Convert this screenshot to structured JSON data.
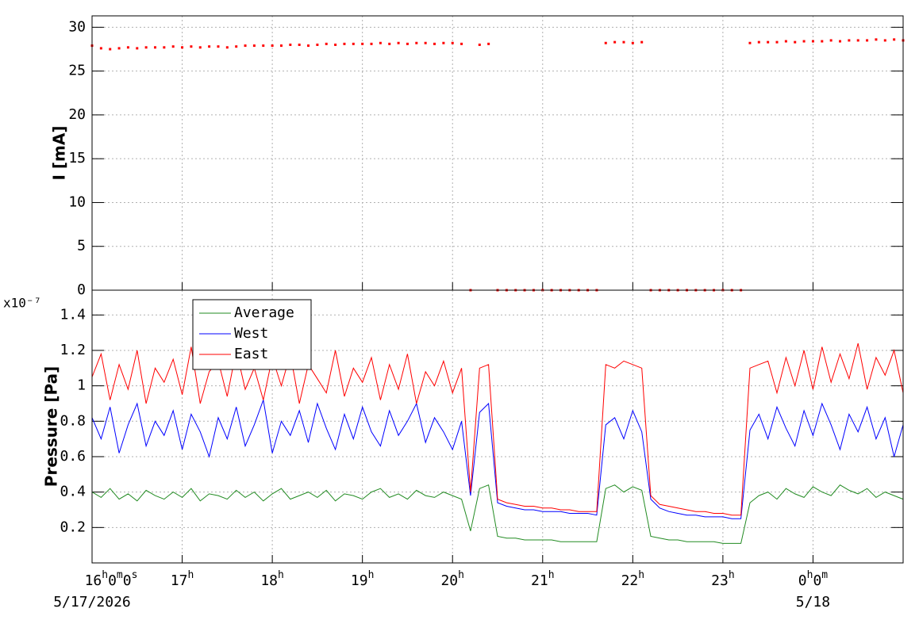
{
  "chart_data": [
    {
      "type": "scatter",
      "y_label": "I [mA]",
      "xlim": [
        16,
        25
      ],
      "ylim": [
        0,
        31.3
      ],
      "yticks": [
        0,
        5,
        10,
        15,
        20,
        25,
        30
      ],
      "grid": true,
      "x": [
        16,
        16.1,
        16.2,
        16.3,
        16.4,
        16.5,
        16.6,
        16.7,
        16.8,
        16.9,
        17,
        17.1,
        17.2,
        17.3,
        17.4,
        17.5,
        17.6,
        17.7,
        17.8,
        17.9,
        18,
        18.1,
        18.2,
        18.3,
        18.4,
        18.5,
        18.6,
        18.7,
        18.8,
        18.9,
        19,
        19.1,
        19.2,
        19.3,
        19.4,
        19.5,
        19.6,
        19.7,
        19.8,
        19.9,
        20,
        20.1,
        20.2,
        20.3,
        20.4,
        20.5,
        20.6,
        20.7,
        20.8,
        20.9,
        21,
        21.1,
        21.2,
        21.3,
        21.4,
        21.5,
        21.6,
        21.7,
        21.8,
        21.9,
        22,
        22.1,
        22.2,
        22.3,
        22.4,
        22.5,
        22.6,
        22.7,
        22.8,
        22.9,
        23,
        23.1,
        23.2,
        23.3,
        23.4,
        23.5,
        23.6,
        23.7,
        23.8,
        23.9,
        24,
        24.1,
        24.2,
        24.3,
        24.4,
        24.5,
        24.6,
        24.7,
        24.8,
        24.9,
        25
      ],
      "series": [
        {
          "color": "#ff0000",
          "values": [
            27.9,
            27.6,
            27.5,
            27.6,
            27.7,
            27.6,
            27.7,
            27.7,
            27.7,
            27.8,
            27.7,
            27.8,
            27.7,
            27.8,
            27.8,
            27.7,
            27.8,
            27.9,
            27.9,
            27.9,
            27.9,
            27.9,
            28.0,
            28.0,
            27.9,
            28.0,
            28.1,
            28.0,
            28.1,
            28.1,
            28.1,
            28.1,
            28.2,
            28.1,
            28.2,
            28.1,
            28.2,
            28.2,
            28.1,
            28.2,
            28.2,
            28.1,
            0,
            28.0,
            28.1,
            0,
            0,
            0,
            0,
            0,
            0,
            0,
            0,
            0,
            0,
            0,
            0,
            28.2,
            28.3,
            28.3,
            28.2,
            28.3,
            0,
            0,
            0,
            0,
            0,
            0,
            0,
            0,
            0,
            0,
            0,
            28.2,
            28.3,
            28.3,
            28.3,
            28.4,
            28.3,
            28.4,
            28.4,
            28.4,
            28.5,
            28.4,
            28.5,
            28.5,
            28.5,
            28.6,
            28.5,
            28.6,
            28.5
          ]
        }
      ]
    },
    {
      "type": "line",
      "y_label": "Pressure [Pa]",
      "y_multiplier": "x10⁻⁷",
      "xlim": [
        16,
        25
      ],
      "ylim": [
        0,
        1.54
      ],
      "yticks": [
        0.2,
        0.4,
        0.6,
        0.8,
        1,
        1.2,
        1.4
      ],
      "grid": true,
      "xticks": [
        {
          "value": 16,
          "label": "16h0m0s"
        },
        {
          "value": 17,
          "label": "17h"
        },
        {
          "value": 18,
          "label": "18h"
        },
        {
          "value": 19,
          "label": "19h"
        },
        {
          "value": 20,
          "label": "20h"
        },
        {
          "value": 21,
          "label": "21h"
        },
        {
          "value": 22,
          "label": "22h"
        },
        {
          "value": 23,
          "label": "23h"
        },
        {
          "value": 24,
          "label": "0h0m"
        }
      ],
      "date_labels": [
        {
          "value": 16,
          "label": "5/17/2026"
        },
        {
          "value": 24,
          "label": "5/18"
        }
      ],
      "legend": "upper-left",
      "x": [
        16,
        16.1,
        16.2,
        16.3,
        16.4,
        16.5,
        16.6,
        16.7,
        16.8,
        16.9,
        17,
        17.1,
        17.2,
        17.3,
        17.4,
        17.5,
        17.6,
        17.7,
        17.8,
        17.9,
        18,
        18.1,
        18.2,
        18.3,
        18.4,
        18.5,
        18.6,
        18.7,
        18.8,
        18.9,
        19,
        19.1,
        19.2,
        19.3,
        19.4,
        19.5,
        19.6,
        19.7,
        19.8,
        19.9,
        20,
        20.1,
        20.2,
        20.3,
        20.4,
        20.5,
        20.6,
        20.7,
        20.8,
        20.9,
        21,
        21.1,
        21.2,
        21.3,
        21.4,
        21.5,
        21.6,
        21.7,
        21.8,
        21.9,
        22,
        22.1,
        22.2,
        22.3,
        22.4,
        22.5,
        22.6,
        22.7,
        22.8,
        22.9,
        23,
        23.1,
        23.2,
        23.3,
        23.4,
        23.5,
        23.6,
        23.7,
        23.8,
        23.9,
        24,
        24.1,
        24.2,
        24.3,
        24.4,
        24.5,
        24.6,
        24.7,
        24.8,
        24.9,
        25
      ],
      "series": [
        {
          "name": "Average",
          "color": "#228b22",
          "values": [
            0.4,
            0.37,
            0.42,
            0.36,
            0.39,
            0.35,
            0.41,
            0.38,
            0.36,
            0.4,
            0.37,
            0.42,
            0.35,
            0.39,
            0.38,
            0.36,
            0.41,
            0.37,
            0.4,
            0.35,
            0.39,
            0.42,
            0.36,
            0.38,
            0.4,
            0.37,
            0.41,
            0.35,
            0.39,
            0.38,
            0.36,
            0.4,
            0.42,
            0.37,
            0.39,
            0.36,
            0.41,
            0.38,
            0.37,
            0.4,
            0.38,
            0.36,
            0.18,
            0.42,
            0.44,
            0.15,
            0.14,
            0.14,
            0.13,
            0.13,
            0.13,
            0.13,
            0.12,
            0.12,
            0.12,
            0.12,
            0.12,
            0.42,
            0.44,
            0.4,
            0.43,
            0.41,
            0.15,
            0.14,
            0.13,
            0.13,
            0.12,
            0.12,
            0.12,
            0.12,
            0.11,
            0.11,
            0.11,
            0.34,
            0.38,
            0.4,
            0.36,
            0.42,
            0.39,
            0.37,
            0.43,
            0.4,
            0.38,
            0.44,
            0.41,
            0.39,
            0.42,
            0.37,
            0.4,
            0.38,
            0.36
          ]
        },
        {
          "name": "West",
          "color": "#0000ff",
          "values": [
            0.82,
            0.7,
            0.88,
            0.62,
            0.78,
            0.9,
            0.66,
            0.8,
            0.72,
            0.86,
            0.64,
            0.84,
            0.74,
            0.6,
            0.82,
            0.7,
            0.88,
            0.66,
            0.78,
            0.92,
            0.62,
            0.8,
            0.72,
            0.86,
            0.68,
            0.9,
            0.76,
            0.64,
            0.84,
            0.7,
            0.88,
            0.74,
            0.66,
            0.86,
            0.72,
            0.8,
            0.9,
            0.68,
            0.82,
            0.74,
            0.64,
            0.8,
            0.38,
            0.85,
            0.9,
            0.34,
            0.32,
            0.31,
            0.3,
            0.3,
            0.29,
            0.29,
            0.29,
            0.28,
            0.28,
            0.28,
            0.27,
            0.78,
            0.82,
            0.7,
            0.86,
            0.74,
            0.36,
            0.31,
            0.29,
            0.28,
            0.27,
            0.27,
            0.26,
            0.26,
            0.26,
            0.25,
            0.25,
            0.75,
            0.84,
            0.7,
            0.88,
            0.76,
            0.66,
            0.86,
            0.72,
            0.9,
            0.78,
            0.64,
            0.84,
            0.74,
            0.88,
            0.7,
            0.82,
            0.6,
            0.78
          ]
        },
        {
          "name": "East",
          "color": "#ff0000",
          "values": [
            1.05,
            1.18,
            0.92,
            1.12,
            0.98,
            1.2,
            0.9,
            1.1,
            1.02,
            1.15,
            0.95,
            1.22,
            0.9,
            1.08,
            1.14,
            0.94,
            1.2,
            0.98,
            1.1,
            0.92,
            1.16,
            1.0,
            1.18,
            0.9,
            1.12,
            1.04,
            0.96,
            1.2,
            0.94,
            1.1,
            1.02,
            1.16,
            0.92,
            1.12,
            0.98,
            1.18,
            0.9,
            1.08,
            1.0,
            1.14,
            0.96,
            1.1,
            0.4,
            1.1,
            1.12,
            0.36,
            0.34,
            0.33,
            0.32,
            0.32,
            0.31,
            0.31,
            0.3,
            0.3,
            0.29,
            0.29,
            0.29,
            1.12,
            1.1,
            1.14,
            1.12,
            1.1,
            0.38,
            0.33,
            0.32,
            0.31,
            0.3,
            0.29,
            0.29,
            0.28,
            0.28,
            0.27,
            0.27,
            1.1,
            1.12,
            1.14,
            0.96,
            1.16,
            1.0,
            1.2,
            0.98,
            1.22,
            1.02,
            1.18,
            1.04,
            1.24,
            0.98,
            1.16,
            1.06,
            1.2,
            0.96
          ]
        }
      ]
    }
  ]
}
